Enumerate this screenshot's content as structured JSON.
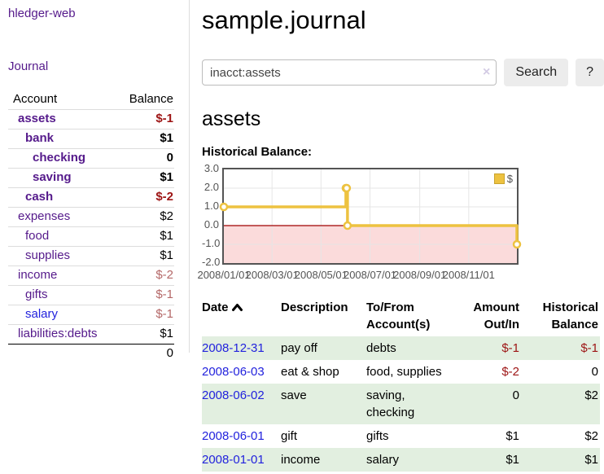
{
  "colors": {
    "link_purple": "#551a8b",
    "link_blue": "#2222dd",
    "negative_strong": "#9d1414",
    "negative_muted": "#b46868",
    "row_green": "#e2efe0",
    "button_bg": "#ececec",
    "chart_border": "#545454"
  },
  "brand": "hledger-web",
  "nav": {
    "journal": "Journal"
  },
  "sidebar": {
    "headers": {
      "account": "Account",
      "balance": "Balance"
    },
    "rows": [
      {
        "account": "assets",
        "balance": "$-1"
      },
      {
        "account": "bank",
        "balance": "$1"
      },
      {
        "account": "checking",
        "balance": "0"
      },
      {
        "account": "saving",
        "balance": "$1"
      },
      {
        "account": "cash",
        "balance": "$-2"
      },
      {
        "account": "expenses",
        "balance": "$2"
      },
      {
        "account": "food",
        "balance": "$1"
      },
      {
        "account": "supplies",
        "balance": "$1"
      },
      {
        "account": "income",
        "balance": "$-2"
      },
      {
        "account": "gifts",
        "balance": "$-1"
      },
      {
        "account": "salary",
        "balance": "$-1"
      },
      {
        "account": "liabilities:debts",
        "balance": "$1"
      }
    ],
    "total": "0"
  },
  "main": {
    "title": "sample.journal",
    "search": {
      "value": "inacct:assets",
      "clear": "×",
      "search_button": "Search",
      "help_button": "?"
    },
    "account_heading": "assets",
    "chart_title": "Historical Balance:"
  },
  "chart_data": {
    "type": "line",
    "step": true,
    "title": "Historical Balance",
    "series": [
      {
        "name": "$",
        "color": "#edc240",
        "points": [
          [
            "2008-01-01",
            1
          ],
          [
            "2008-06-01",
            2
          ],
          [
            "2008-06-02",
            2
          ],
          [
            "2008-06-03",
            0
          ],
          [
            "2008-12-31",
            -1
          ]
        ]
      }
    ],
    "xlim": [
      "2008-01-01",
      "2008-12-31"
    ],
    "ylim": [
      -2,
      3
    ],
    "y_ticks": [
      3.0,
      2.0,
      1.0,
      0.0,
      -1.0,
      -2.0
    ],
    "x_ticks": [
      "2008/01/01",
      "2008/03/01",
      "2008/05/01",
      "2008/07/01",
      "2008/09/01",
      "2008/11/01"
    ],
    "grid": true,
    "gridline_color": "#e6e6e6",
    "negative_region_fill": "#fbdbdb",
    "zero_line_color": "#a00000",
    "legend": {
      "label": "$",
      "position": "top-right"
    }
  },
  "register": {
    "headers": {
      "date": "Date",
      "description": "Description",
      "account": "To/From Account(s)",
      "amount": "Amount Out/In",
      "balance": "Historical Balance"
    },
    "rows": [
      {
        "date": "2008-12-31",
        "description": "pay off",
        "account": "debts",
        "amount": "$-1",
        "balance": "$-1"
      },
      {
        "date": "2008-06-03",
        "description": "eat & shop",
        "account": "food, supplies",
        "amount": "$-2",
        "balance": "0"
      },
      {
        "date": "2008-06-02",
        "description": "save",
        "account": "saving, checking",
        "amount": "0",
        "balance": "$2"
      },
      {
        "date": "2008-06-01",
        "description": "gift",
        "account": "gifts",
        "amount": "$1",
        "balance": "$2"
      },
      {
        "date": "2008-01-01",
        "description": "income",
        "account": "salary",
        "amount": "$1",
        "balance": "$1"
      }
    ]
  }
}
